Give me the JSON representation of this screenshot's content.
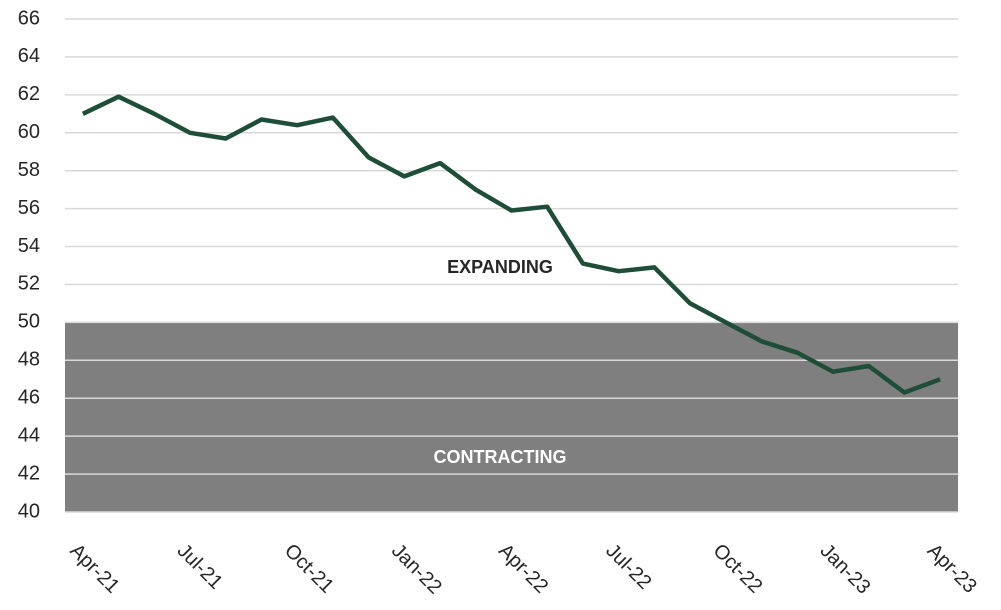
{
  "chart_data": {
    "type": "line",
    "categories": [
      "Apr-21",
      null,
      null,
      "Jul-21",
      null,
      null,
      "Oct-21",
      null,
      null,
      "Jan-22",
      null,
      null,
      "Apr-22",
      null,
      null,
      "Jul-22",
      null,
      null,
      "Oct-22",
      null,
      null,
      "Jan-23",
      null,
      null,
      "Apr-23"
    ],
    "series": [
      {
        "name": "PMI",
        "color": "#1e4d38",
        "values": [
          61.0,
          61.9,
          61.0,
          60.0,
          59.7,
          60.7,
          60.4,
          60.8,
          58.7,
          57.7,
          58.4,
          57.0,
          55.9,
          56.1,
          53.1,
          52.7,
          52.9,
          51.0,
          50.0,
          49.0,
          48.4,
          47.4,
          47.7,
          46.3,
          47.0
        ]
      }
    ],
    "ylim": [
      40,
      66
    ],
    "yticks": [
      40,
      42,
      44,
      46,
      48,
      50,
      52,
      54,
      56,
      58,
      60,
      62,
      64,
      66
    ],
    "grid": true,
    "bands": [
      {
        "label": "CONTRACTING",
        "from": 40,
        "to": 50,
        "color": "#7f7f7f"
      }
    ],
    "annotations": [
      {
        "text": "EXPANDING"
      }
    ]
  }
}
